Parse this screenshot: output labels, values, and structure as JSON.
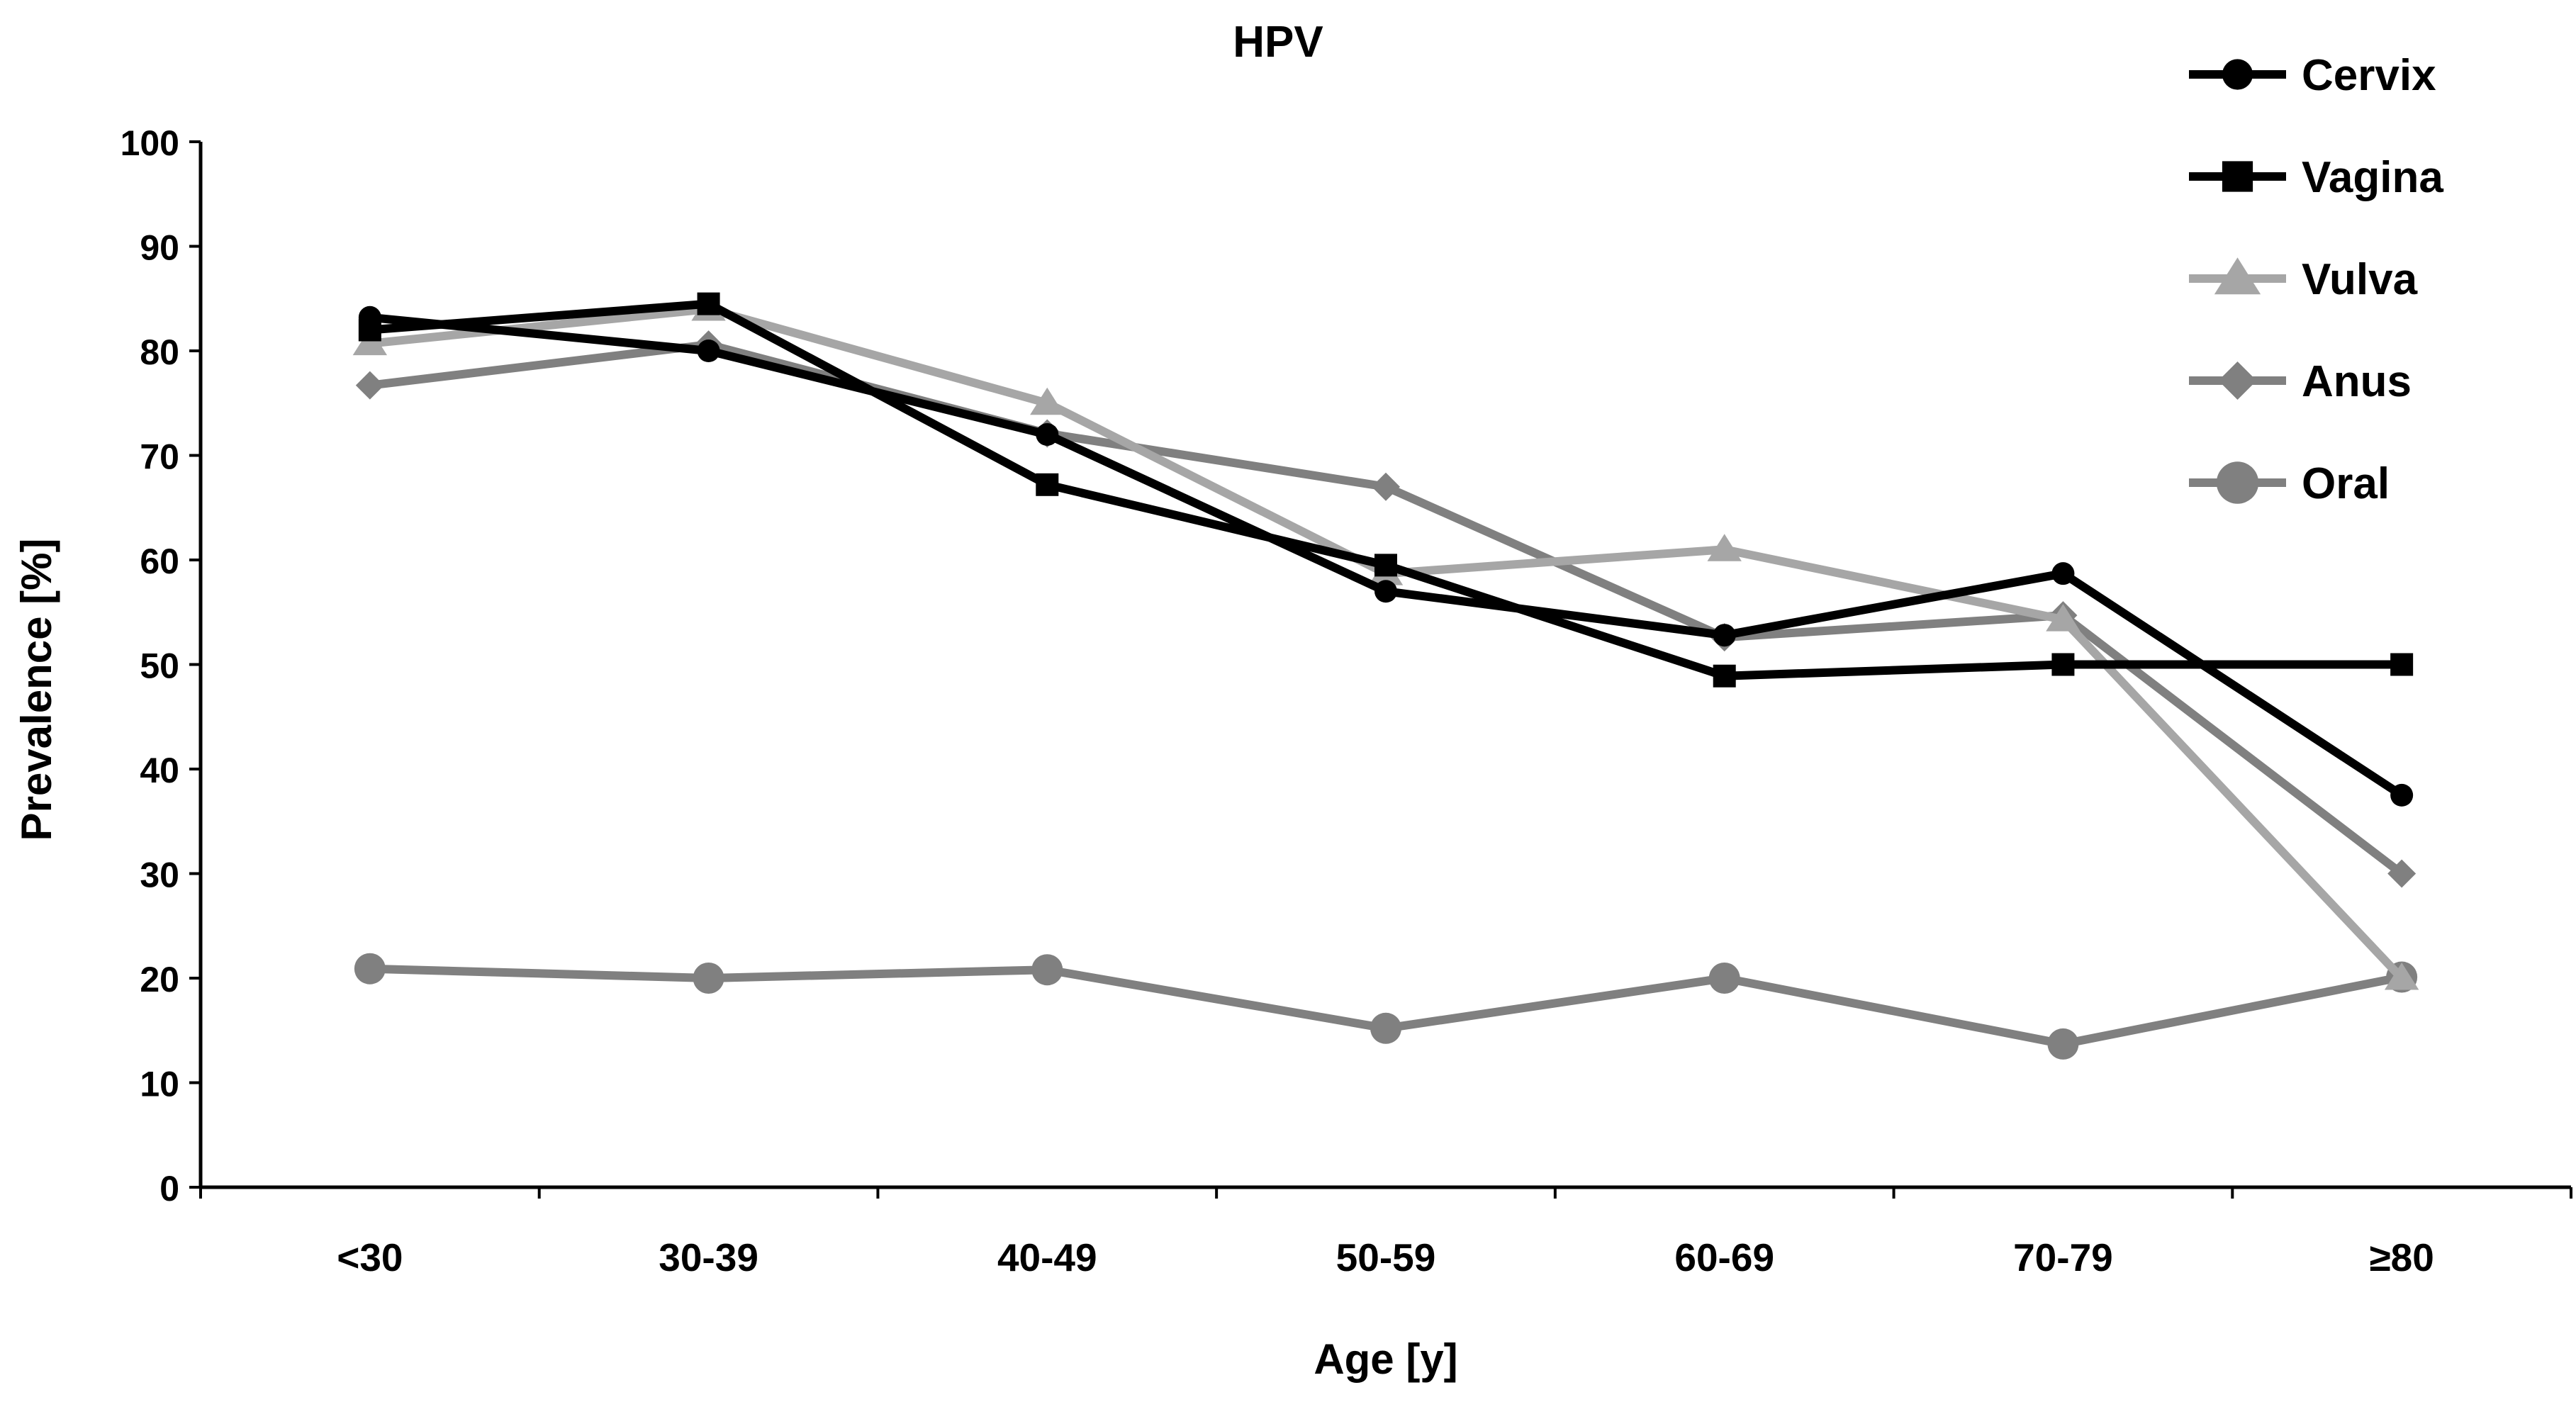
{
  "chart_data": {
    "type": "line",
    "title": "HPV",
    "xlabel": "Age [y]",
    "ylabel": "Prevalence [%]",
    "categories": [
      "<30",
      "30-39",
      "40-49",
      "50-59",
      "60-69",
      "70-79",
      "≥80"
    ],
    "ylim": [
      0,
      100
    ],
    "yticks": [
      0,
      10,
      20,
      30,
      40,
      50,
      60,
      70,
      80,
      90,
      100
    ],
    "grid": false,
    "legend_position": "top-right",
    "series": [
      {
        "name": "Cervix",
        "marker": "circle",
        "color": "#000000",
        "values": [
          83.2,
          80.0,
          72.0,
          57.0,
          52.8,
          58.7,
          37.5
        ]
      },
      {
        "name": "Vagina",
        "marker": "square",
        "color": "#000000",
        "values": [
          82.0,
          84.5,
          67.2,
          59.5,
          48.9,
          50.0,
          50.0
        ]
      },
      {
        "name": "Vulva",
        "marker": "triangle",
        "color": "#a6a6a6",
        "values": [
          80.7,
          84.0,
          75.0,
          58.7,
          61.0,
          54.3,
          20.0
        ]
      },
      {
        "name": "Anus",
        "marker": "diamond",
        "color": "#808080",
        "values": [
          76.7,
          80.6,
          72.1,
          67.0,
          52.6,
          54.7,
          30.0
        ]
      },
      {
        "name": "Oral",
        "marker": "circle",
        "color": "#808080",
        "values": [
          20.9,
          20.0,
          20.8,
          15.2,
          20.0,
          13.7,
          20.1
        ]
      }
    ]
  }
}
